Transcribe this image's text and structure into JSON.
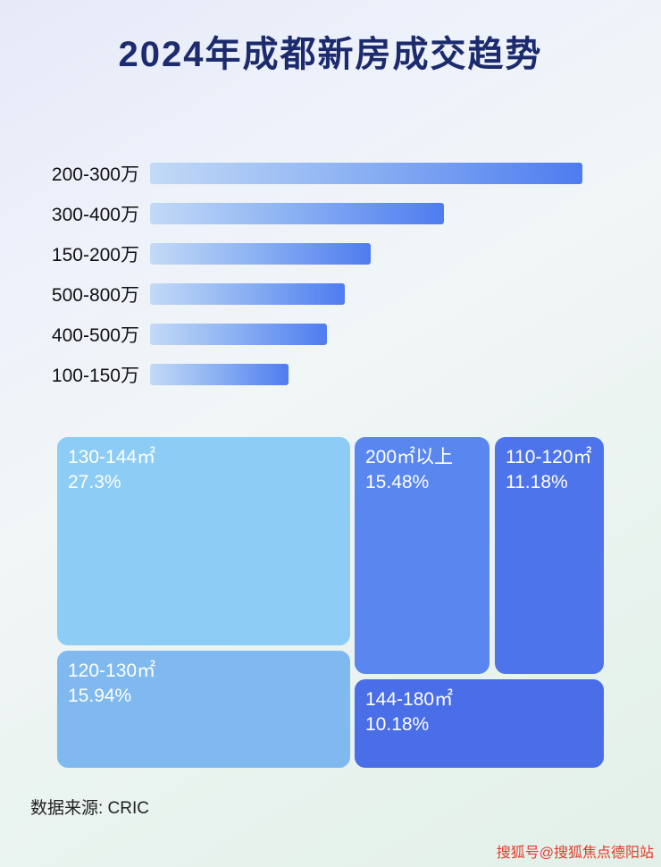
{
  "title": "2024年成都新房成交趋势",
  "chart_data": [
    {
      "type": "bar",
      "orientation": "horizontal",
      "categories": [
        "200-300万",
        "300-400万",
        "150-200万",
        "500-800万",
        "400-500万",
        "100-150万"
      ],
      "values_relative_pct": [
        100,
        68,
        51,
        45,
        41,
        32
      ],
      "note": "no numeric axis or data labels shown; values are relative bar lengths (% of longest bar)",
      "bar_gradient": [
        "#c3daf7",
        "#4e7cf0"
      ],
      "grid": "off",
      "legend": "none"
    },
    {
      "type": "treemap",
      "items": [
        {
          "label": "130-144㎡",
          "value": "27.3%",
          "color": "#8cccf5"
        },
        {
          "label": "120-130㎡",
          "value": "15.94%",
          "color": "#7fb9f0"
        },
        {
          "label": "200㎡以上",
          "value": "15.48%",
          "color": "#5a86ef"
        },
        {
          "label": "110-120㎡",
          "value": "11.18%",
          "color": "#4d74ea"
        },
        {
          "label": "144-180㎡",
          "value": "10.18%",
          "color": "#4a6de8"
        }
      ]
    }
  ],
  "colors": {
    "title": "#1c2b6d",
    "background_top": "#e6eaf8",
    "background_bottom": "#e3f0e9",
    "watermark": "#e23a2a"
  },
  "source": {
    "text": "数据来源: CRIC"
  },
  "watermark": {
    "text": "搜狐号@搜狐焦点德阳站"
  }
}
